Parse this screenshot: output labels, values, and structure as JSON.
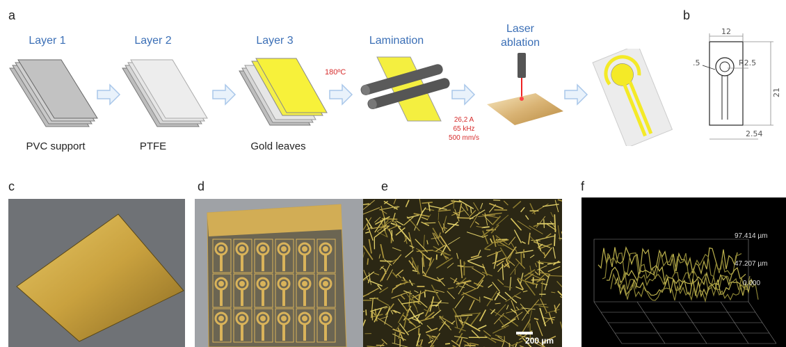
{
  "panel_labels": {
    "a": "a",
    "b": "b",
    "c": "c",
    "d": "d",
    "e": "e",
    "f": "f"
  },
  "steps": [
    {
      "title": "Layer 1",
      "caption": "PVC support"
    },
    {
      "title": "Layer 2",
      "caption": "PTFE"
    },
    {
      "title": "Layer 3",
      "caption": "Gold leaves"
    },
    {
      "title": "Lamination"
    },
    {
      "title": "Laser ablation"
    }
  ],
  "lamination_temp": "180ºC",
  "laser_params": {
    "current": "26,2 A",
    "frequency": "65 kHz",
    "speed": "500 mm/s"
  },
  "drawing_dims": {
    "width": "12",
    "radius": "R2.5",
    "gap": ".5",
    "height": "21",
    "pitch": "2.54"
  },
  "scale_bar": "200 µm",
  "profile_ticks": [
    "97.414 µm",
    "47.207 µm",
    "0.000"
  ],
  "colors": {
    "gold": "#f2ea2e",
    "title_blue": "#3b6fb6",
    "param_red": "#d62b2b",
    "arrow": "#a9c7ea"
  }
}
